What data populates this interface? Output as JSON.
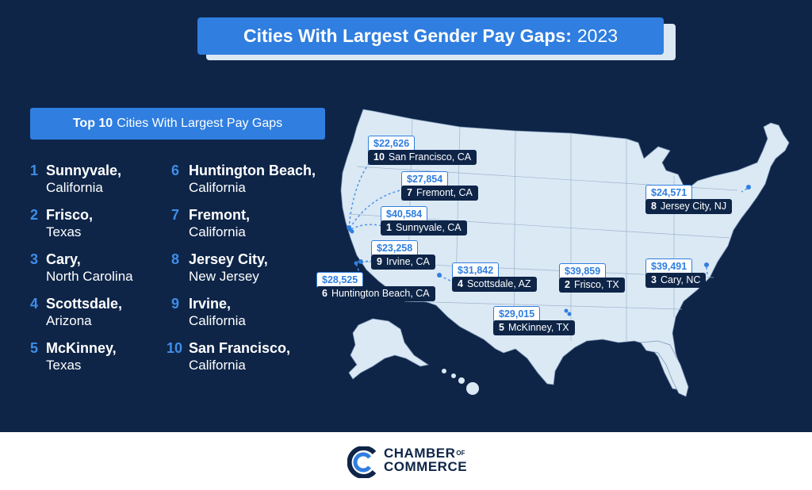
{
  "title": {
    "bold": "Cities With Largest Gender Pay Gaps:",
    "year": "2023"
  },
  "subtitle": {
    "bold": "Top 10",
    "rest": "Cities With Largest Pay Gaps"
  },
  "ranking": [
    {
      "rank": "1",
      "city": "Sunnyvale,",
      "state": "California"
    },
    {
      "rank": "2",
      "city": "Frisco,",
      "state": "Texas"
    },
    {
      "rank": "3",
      "city": "Cary,",
      "state": "North Carolina"
    },
    {
      "rank": "4",
      "city": "Scottsdale,",
      "state": "Arizona"
    },
    {
      "rank": "5",
      "city": "McKinney,",
      "state": "Texas"
    },
    {
      "rank": "6",
      "city": "Huntington Beach,",
      "state": "California"
    },
    {
      "rank": "7",
      "city": "Fremont,",
      "state": "California"
    },
    {
      "rank": "8",
      "city": "Jersey City,",
      "state": "New Jersey"
    },
    {
      "rank": "9",
      "city": "Irvine,",
      "state": "California"
    },
    {
      "rank": "10",
      "city": "San Francisco,",
      "state": "California"
    }
  ],
  "callouts": [
    {
      "amount": "$22,626",
      "rank": "10",
      "label": "San Francisco, CA"
    },
    {
      "amount": "$27,854",
      "rank": "7",
      "label": "Fremont, CA"
    },
    {
      "amount": "$40,584",
      "rank": "1",
      "label": "Sunnyvale, CA"
    },
    {
      "amount": "$23,258",
      "rank": "9",
      "label": "Irvine, CA"
    },
    {
      "amount": "$28,525",
      "rank": "6",
      "label": "Huntington Beach, CA"
    },
    {
      "amount": "$31,842",
      "rank": "4",
      "label": "Scottsdale, AZ"
    },
    {
      "amount": "$39,859",
      "rank": "2",
      "label": "Frisco, TX"
    },
    {
      "amount": "$29,015",
      "rank": "5",
      "label": "McKinney, TX"
    },
    {
      "amount": "$39,491",
      "rank": "3",
      "label": "Cary, NC"
    },
    {
      "amount": "$24,571",
      "rank": "8",
      "label": "Jersey City, NJ"
    }
  ],
  "logo": {
    "line1": "CHAMBER",
    "of": "OF",
    "line2": "COMMERCE"
  },
  "colors": {
    "background": "#0e2548",
    "accent": "#2f7ee0",
    "map_fill": "#dbe9f5",
    "footer": "#ffffff"
  }
}
